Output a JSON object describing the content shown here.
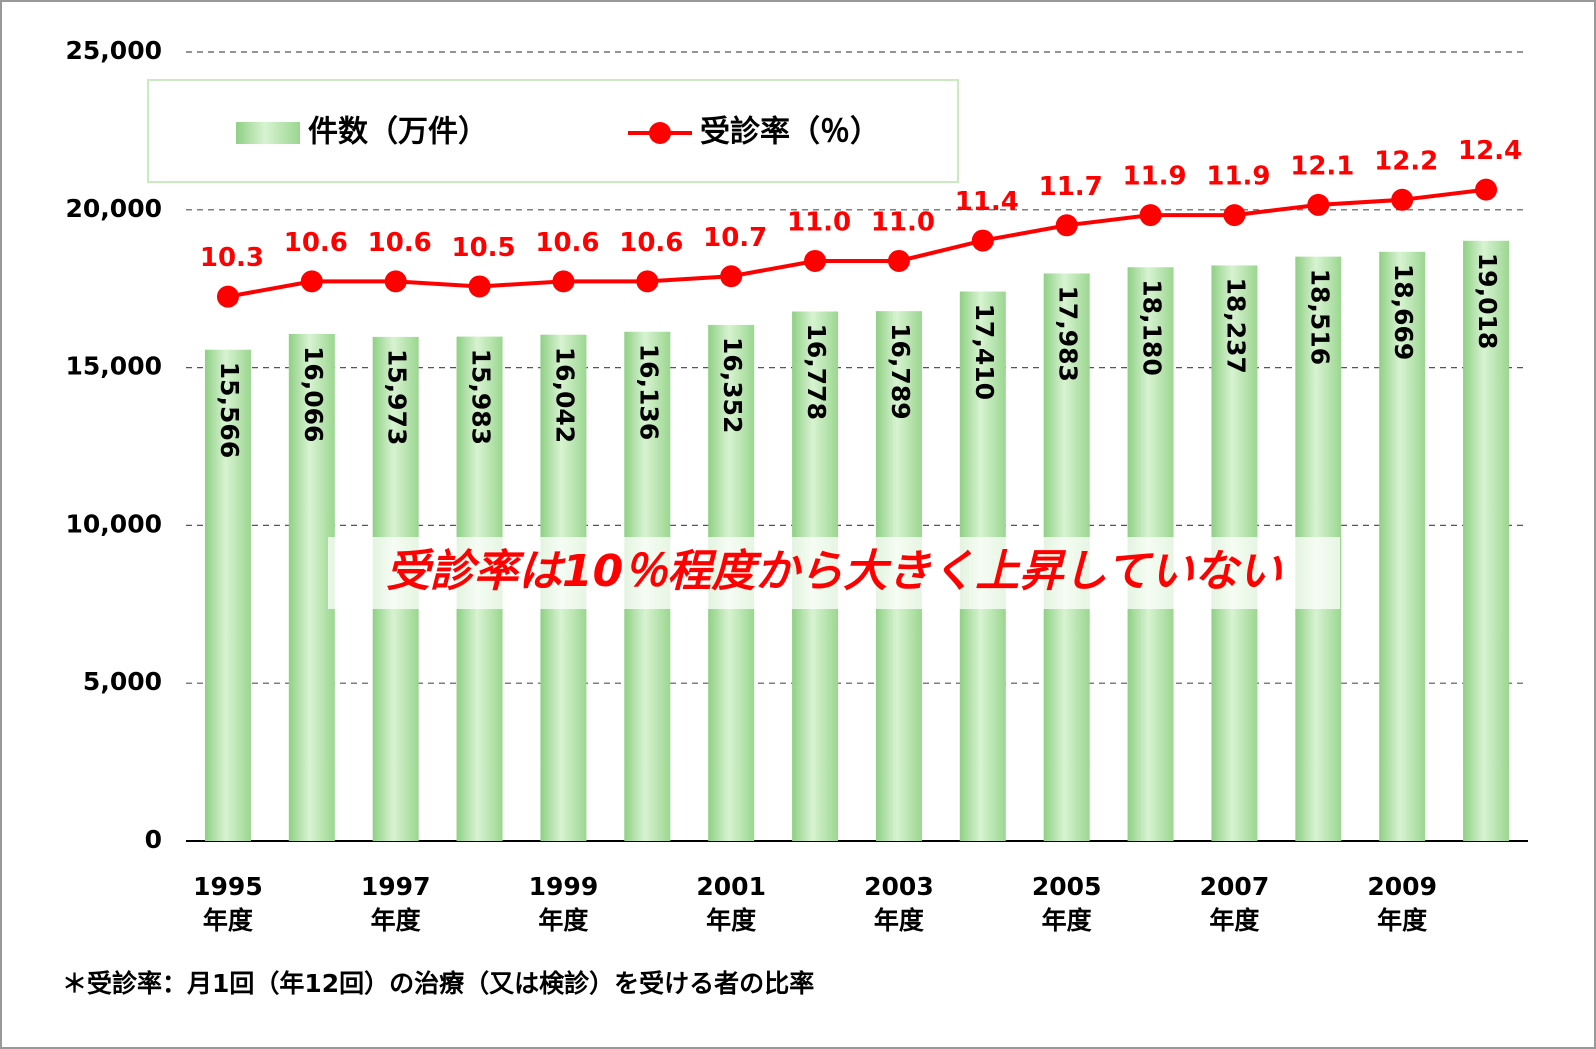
{
  "chart_data": {
    "type": "bar-line",
    "categories": [
      "1995\n年度",
      null,
      "1997\n年度",
      null,
      "1999\n年度",
      null,
      "2001\n年度",
      null,
      "2003\n年度",
      null,
      "2005\n年度",
      null,
      "2007\n年度",
      null,
      "2009\n年度",
      null
    ],
    "series": [
      {
        "name": "件数（万件）",
        "type": "bar",
        "color": "#b5e3ad",
        "values": [
          15566,
          16066,
          15973,
          15983,
          16042,
          16136,
          16352,
          16778,
          16789,
          17410,
          17983,
          18180,
          18237,
          18516,
          18669,
          19018
        ],
        "value_labels": [
          "15,566",
          "16,066",
          "15,973",
          "15,983",
          "16,042",
          "16,136",
          "16,352",
          "16,778",
          "16,789",
          "17,410",
          "17,983",
          "18,180",
          "18,237",
          "18,516",
          "18,669",
          "19,018"
        ]
      },
      {
        "name": "受診率（％）",
        "type": "line",
        "axis": "y2",
        "color": "#ff0000",
        "values": [
          10.3,
          10.6,
          10.6,
          10.5,
          10.6,
          10.6,
          10.7,
          11.0,
          11.0,
          11.4,
          11.7,
          11.9,
          11.9,
          12.1,
          12.2,
          12.4
        ],
        "value_labels": [
          "10.3",
          "10.6",
          "10.6",
          "10.5",
          "10.6",
          "10.6",
          "10.7",
          "11.0",
          "11.0",
          "11.4",
          "11.7",
          "11.9",
          "11.9",
          "12.1",
          "12.2",
          "12.4"
        ]
      }
    ],
    "ylim": [
      0,
      25000
    ],
    "yticks": [
      0,
      {
        "value": 5000,
        "label": "5,000"
      },
      {
        "value": 10000,
        "label": "10,000"
      },
      {
        "value": 15000,
        "label": "15,000"
      },
      {
        "value": 20000,
        "label": "20,000"
      },
      {
        "value": 25000,
        "label": "25,000"
      }
    ],
    "y2lim": [
      -0.38,
      15.1
    ],
    "grid": true,
    "legend": "top",
    "annotation": "受診率は10％程度から大きく上昇していない",
    "footnote": "＊受診率：月1回（年12回）の治療（又は検診）を受ける者の比率"
  }
}
